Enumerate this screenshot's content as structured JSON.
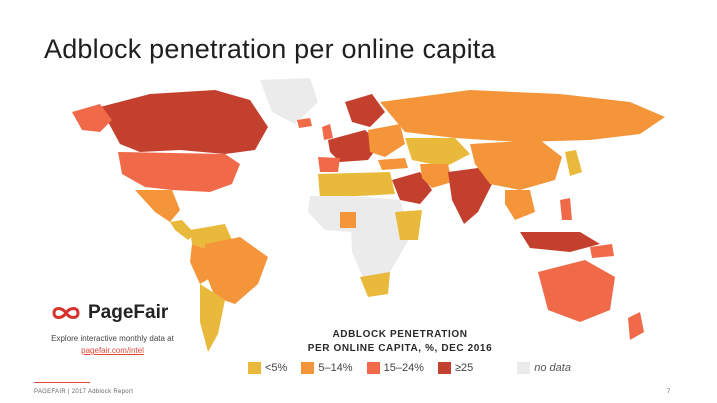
{
  "title": "Adblock penetration per online capita",
  "logo": {
    "text": "PageFair",
    "icon": "pagefair-logo-icon"
  },
  "explore": {
    "text": "Explore interactive monthly data at",
    "link": "pagefair.com/intel"
  },
  "legend": {
    "title_line1": "ADBLOCK PENETRATION",
    "title_line2": "PER ONLINE CAPITA, %, DEC 2016",
    "items": [
      {
        "label": "<5%",
        "color": "#e9b93c"
      },
      {
        "label": "5–14%",
        "color": "#f4953a"
      },
      {
        "label": "15–24%",
        "color": "#f06a4a"
      },
      {
        "label": "≥25",
        "color": "#c4402e"
      },
      {
        "label": "no data",
        "color": "#ebebeb"
      }
    ]
  },
  "footer": {
    "text": "PAGEFAIR | 2017 Adblock Report",
    "page": "7"
  },
  "colors": {
    "accent": "#e0463a",
    "lt5": "#e9b93c",
    "r5_14": "#f4953a",
    "r15_24": "#f06a4a",
    "ge25": "#c4402e",
    "nodata": "#ebebeb"
  }
}
